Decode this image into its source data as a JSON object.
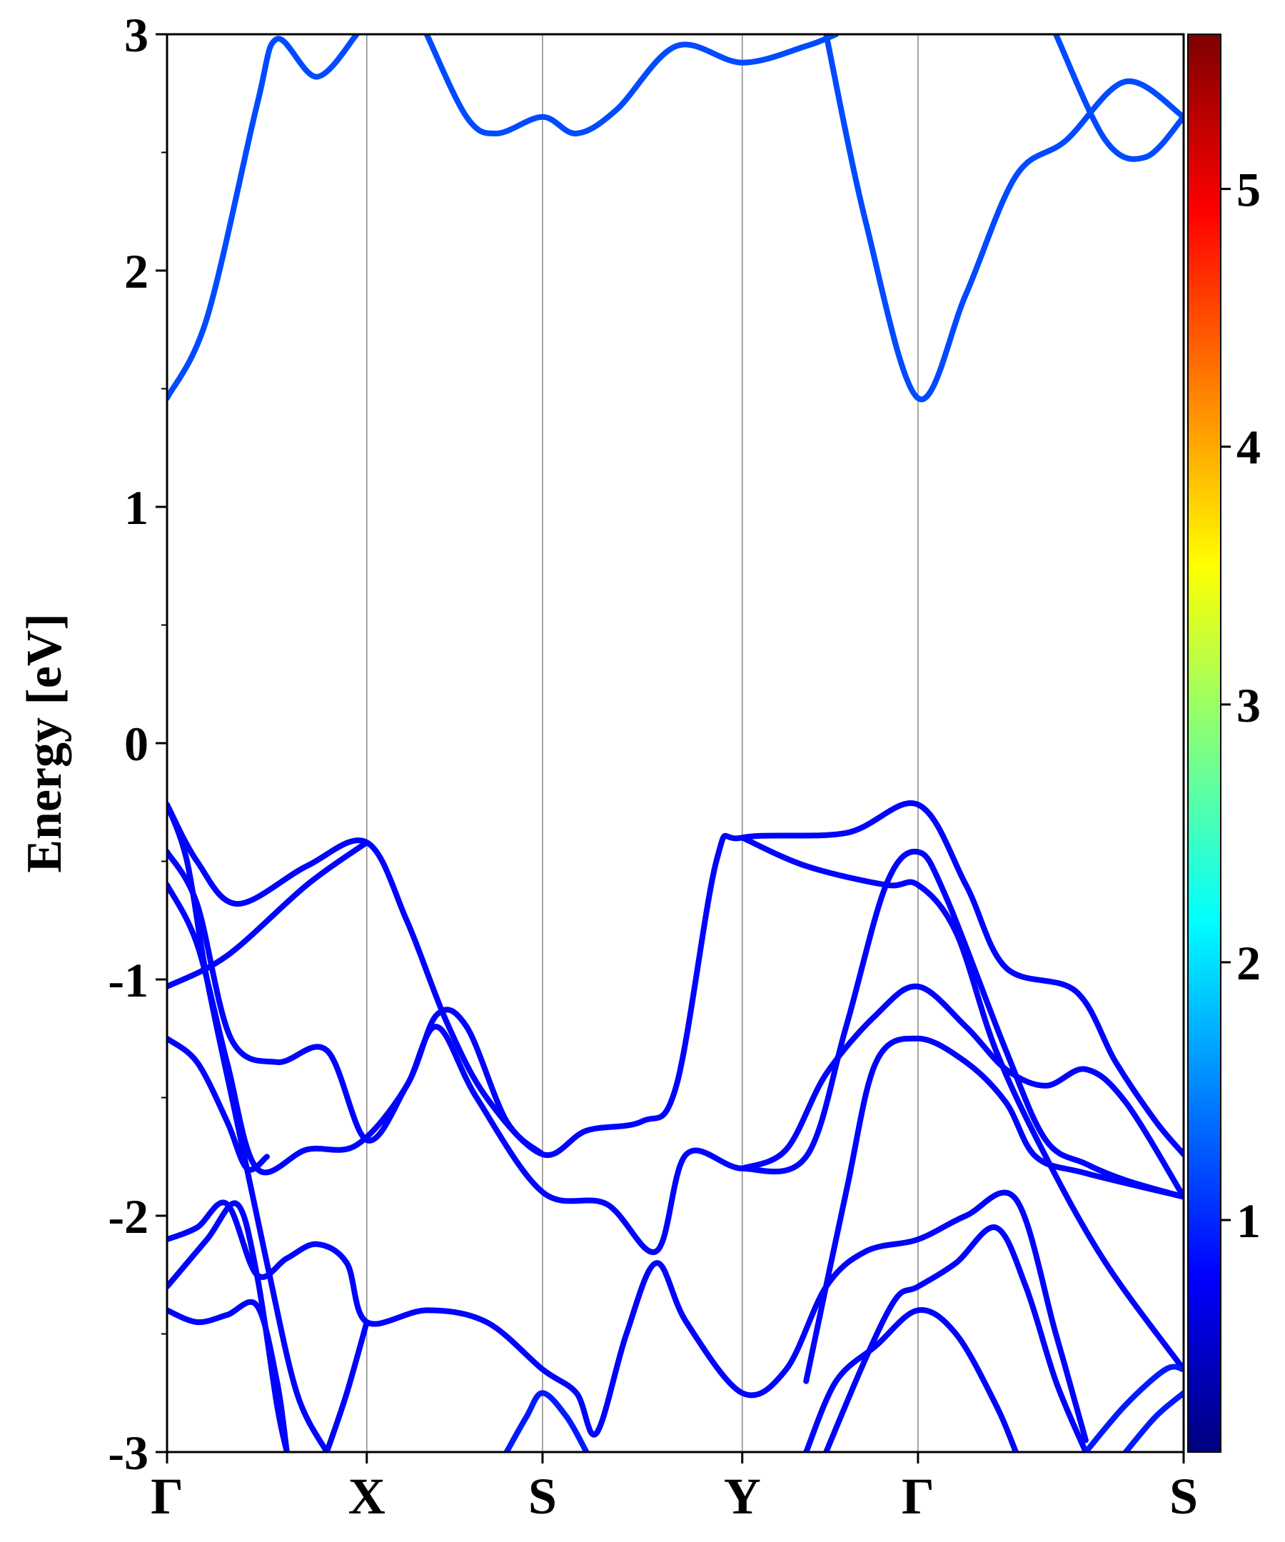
{
  "chart_data": {
    "type": "line",
    "title": "",
    "xlabel": "",
    "ylabel": "Energy [eV]",
    "ylim": [
      -3,
      3
    ],
    "x_ticks": [
      {
        "label": "Γ",
        "pos": 0
      },
      {
        "label": "X",
        "pos": 1
      },
      {
        "label": "S",
        "pos": 1.88
      },
      {
        "label": "Y",
        "pos": 2.88
      },
      {
        "label": "Γ",
        "pos": 3.76
      },
      {
        "label": "S",
        "pos": 5.09
      }
    ],
    "y_ticks": [
      -3,
      -2,
      -1,
      0,
      1,
      2,
      3
    ],
    "grid": "vertical lines at high-symmetry points",
    "colorbar": {
      "colormap": "jet",
      "range": [
        0.1,
        5.6
      ],
      "ticks": [
        1,
        2,
        3,
        4,
        5
      ]
    },
    "series": [
      {
        "color_value": 0.6,
        "points": [
          [
            0,
            1.46
          ],
          [
            0.2,
            1.8
          ],
          [
            0.45,
            2.7
          ],
          [
            0.55,
            2.98
          ],
          [
            0.75,
            2.82
          ],
          [
            0.95,
            3.0
          ]
        ]
      },
      {
        "color_value": 0.6,
        "points": [
          [
            1.3,
            3.0
          ],
          [
            1.5,
            2.65
          ],
          [
            1.65,
            2.58
          ],
          [
            1.88,
            2.65
          ],
          [
            2.05,
            2.58
          ],
          [
            2.25,
            2.68
          ],
          [
            2.55,
            2.95
          ],
          [
            2.88,
            2.88
          ],
          [
            3.2,
            2.95
          ],
          [
            3.35,
            3.0
          ]
        ]
      },
      {
        "color_value": 0.6,
        "points": [
          [
            3.3,
            3.0
          ],
          [
            3.5,
            2.2
          ],
          [
            3.76,
            1.46
          ],
          [
            4.0,
            1.9
          ],
          [
            4.25,
            2.4
          ],
          [
            4.5,
            2.55
          ],
          [
            4.8,
            2.8
          ],
          [
            5.09,
            2.65
          ]
        ]
      },
      {
        "color_value": 0.6,
        "points": [
          [
            4.45,
            3.0
          ],
          [
            4.7,
            2.55
          ],
          [
            4.9,
            2.48
          ],
          [
            5.09,
            2.65
          ]
        ]
      },
      {
        "color_value": 0.15,
        "points": [
          [
            0,
            -0.26
          ],
          [
            0.15,
            -0.5
          ],
          [
            0.35,
            -0.68
          ],
          [
            0.7,
            -0.52
          ],
          [
            1.0,
            -0.42
          ],
          [
            1.2,
            -0.75
          ],
          [
            1.4,
            -1.18
          ],
          [
            1.6,
            -1.5
          ],
          [
            1.88,
            -1.74
          ],
          [
            2.1,
            -1.64
          ],
          [
            2.38,
            -1.6
          ],
          [
            2.55,
            -1.45
          ],
          [
            2.75,
            -0.5
          ],
          [
            2.88,
            -0.4
          ],
          [
            3.4,
            -0.38
          ],
          [
            3.76,
            -0.26
          ],
          [
            4.0,
            -0.6
          ],
          [
            4.2,
            -0.95
          ],
          [
            4.55,
            -1.05
          ],
          [
            4.75,
            -1.35
          ],
          [
            4.95,
            -1.6
          ],
          [
            5.09,
            -1.74
          ]
        ]
      },
      {
        "color_value": 0.15,
        "points": [
          [
            0,
            -0.46
          ],
          [
            0.15,
            -0.68
          ],
          [
            0.32,
            -1.25
          ],
          [
            0.55,
            -1.35
          ],
          [
            0.8,
            -1.3
          ],
          [
            1.0,
            -1.68
          ],
          [
            1.2,
            -1.45
          ],
          [
            1.35,
            -1.2
          ],
          [
            1.55,
            -1.5
          ],
          [
            1.88,
            -1.9
          ],
          [
            2.2,
            -1.95
          ],
          [
            2.45,
            -2.15
          ],
          [
            2.6,
            -1.74
          ],
          [
            2.88,
            -1.8
          ],
          [
            3.2,
            -1.75
          ],
          [
            3.4,
            -1.2
          ],
          [
            3.6,
            -0.6
          ],
          [
            3.76,
            -0.46
          ],
          [
            3.9,
            -0.65
          ],
          [
            4.2,
            -1.3
          ],
          [
            4.4,
            -1.68
          ],
          [
            4.6,
            -1.78
          ],
          [
            4.8,
            -1.85
          ],
          [
            5.09,
            -1.92
          ]
        ]
      },
      {
        "color_value": 0.15,
        "points": [
          [
            0,
            -0.6
          ],
          [
            0.15,
            -0.85
          ],
          [
            0.3,
            -1.35
          ],
          [
            0.45,
            -1.8
          ],
          [
            0.7,
            -1.72
          ],
          [
            0.95,
            -1.7
          ],
          [
            1.2,
            -1.45
          ],
          [
            1.35,
            -1.15
          ],
          [
            1.5,
            -1.2
          ],
          [
            1.7,
            -1.6
          ],
          [
            1.88,
            -1.74
          ]
        ]
      },
      {
        "color_value": 0.15,
        "points": [
          [
            0,
            -1.03
          ],
          [
            0.3,
            -0.9
          ],
          [
            0.7,
            -0.6
          ],
          [
            1.0,
            -0.42
          ]
        ]
      },
      {
        "color_value": 0.15,
        "points": [
          [
            2.88,
            -0.4
          ],
          [
            3.2,
            -0.52
          ],
          [
            3.6,
            -0.6
          ],
          [
            3.76,
            -0.6
          ],
          [
            3.95,
            -0.8
          ],
          [
            4.15,
            -1.3
          ],
          [
            4.4,
            -1.75
          ],
          [
            4.7,
            -2.2
          ],
          [
            5.09,
            -2.65
          ]
        ]
      },
      {
        "color_value": 0.15,
        "points": [
          [
            2.88,
            -1.8
          ],
          [
            3.1,
            -1.72
          ],
          [
            3.3,
            -1.4
          ],
          [
            3.55,
            -1.15
          ],
          [
            3.76,
            -1.03
          ],
          [
            4.0,
            -1.2
          ],
          [
            4.2,
            -1.38
          ],
          [
            4.4,
            -1.45
          ],
          [
            4.6,
            -1.38
          ],
          [
            4.8,
            -1.52
          ],
          [
            5.09,
            -1.92
          ]
        ]
      },
      {
        "color_value": 0.15,
        "points": [
          [
            3.2,
            -2.7
          ],
          [
            3.4,
            -1.9
          ],
          [
            3.55,
            -1.35
          ],
          [
            3.76,
            -1.25
          ],
          [
            4.0,
            -1.35
          ],
          [
            4.2,
            -1.52
          ],
          [
            4.35,
            -1.75
          ],
          [
            4.6,
            -1.82
          ],
          [
            5.09,
            -1.92
          ]
        ]
      },
      {
        "color_value": 0.15,
        "points": [
          [
            0,
            -1.25
          ],
          [
            0.15,
            -1.35
          ],
          [
            0.3,
            -1.6
          ],
          [
            0.4,
            -1.8
          ],
          [
            0.5,
            -1.75
          ]
        ]
      },
      {
        "color_value": 0.15,
        "points": [
          [
            0,
            -2.1
          ],
          [
            0.15,
            -2.05
          ],
          [
            0.3,
            -1.95
          ],
          [
            0.45,
            -2.25
          ],
          [
            0.6,
            -2.18
          ],
          [
            0.75,
            -2.12
          ],
          [
            0.9,
            -2.2
          ],
          [
            1.0,
            -2.45
          ],
          [
            1.3,
            -2.4
          ],
          [
            1.6,
            -2.45
          ],
          [
            1.88,
            -2.65
          ],
          [
            2.05,
            -2.75
          ],
          [
            2.15,
            -2.92
          ],
          [
            2.3,
            -2.5
          ],
          [
            2.45,
            -2.2
          ],
          [
            2.6,
            -2.45
          ],
          [
            2.88,
            -2.75
          ],
          [
            3.1,
            -2.65
          ],
          [
            3.3,
            -2.3
          ],
          [
            3.5,
            -2.15
          ],
          [
            3.76,
            -2.1
          ],
          [
            4.0,
            -2.0
          ],
          [
            4.25,
            -1.93
          ],
          [
            4.45,
            -2.5
          ],
          [
            4.6,
            -2.95
          ]
        ]
      },
      {
        "color_value": 0.15,
        "points": [
          [
            0,
            -2.3
          ],
          [
            0.2,
            -2.1
          ],
          [
            0.35,
            -1.95
          ],
          [
            0.45,
            -2.25
          ],
          [
            0.55,
            -2.8
          ],
          [
            0.6,
            -3.0
          ]
        ]
      },
      {
        "color_value": 0.15,
        "points": [
          [
            0,
            -2.4
          ],
          [
            0.15,
            -2.45
          ],
          [
            0.3,
            -2.42
          ],
          [
            0.45,
            -2.38
          ],
          [
            0.55,
            -2.7
          ],
          [
            0.6,
            -3.0
          ]
        ]
      },
      {
        "color_value": 0.15,
        "points": [
          [
            0,
            -0.26
          ],
          [
            0.1,
            -0.5
          ],
          [
            0.2,
            -1.0
          ],
          [
            0.35,
            -1.6
          ],
          [
            0.5,
            -2.2
          ],
          [
            0.65,
            -2.75
          ],
          [
            0.8,
            -3.0
          ]
        ]
      },
      {
        "color_value": 0.15,
        "points": [
          [
            0.8,
            -3.0
          ],
          [
            0.9,
            -2.75
          ],
          [
            1.0,
            -2.45
          ]
        ]
      },
      {
        "color_value": 0.15,
        "points": [
          [
            3.2,
            -3.0
          ],
          [
            3.35,
            -2.7
          ],
          [
            3.55,
            -2.55
          ],
          [
            3.76,
            -2.4
          ],
          [
            3.95,
            -2.5
          ],
          [
            4.15,
            -2.8
          ],
          [
            4.25,
            -3.0
          ]
        ]
      },
      {
        "color_value": 0.15,
        "points": [
          [
            3.3,
            -3.0
          ],
          [
            3.5,
            -2.6
          ],
          [
            3.65,
            -2.35
          ],
          [
            3.76,
            -2.3
          ],
          [
            3.95,
            -2.2
          ],
          [
            4.15,
            -2.05
          ],
          [
            4.3,
            -2.3
          ],
          [
            4.45,
            -2.7
          ],
          [
            4.6,
            -3.0
          ]
        ]
      },
      {
        "color_value": 0.3,
        "points": [
          [
            4.6,
            -3.0
          ],
          [
            4.8,
            -2.8
          ],
          [
            5.0,
            -2.65
          ],
          [
            5.09,
            -2.65
          ]
        ]
      },
      {
        "color_value": 0.3,
        "points": [
          [
            4.8,
            -3.0
          ],
          [
            4.95,
            -2.85
          ],
          [
            5.09,
            -2.75
          ]
        ]
      },
      {
        "color_value": 0.3,
        "points": [
          [
            1.7,
            -3.0
          ],
          [
            1.8,
            -2.85
          ],
          [
            1.88,
            -2.75
          ],
          [
            2.0,
            -2.85
          ],
          [
            2.1,
            -3.0
          ]
        ]
      }
    ]
  }
}
